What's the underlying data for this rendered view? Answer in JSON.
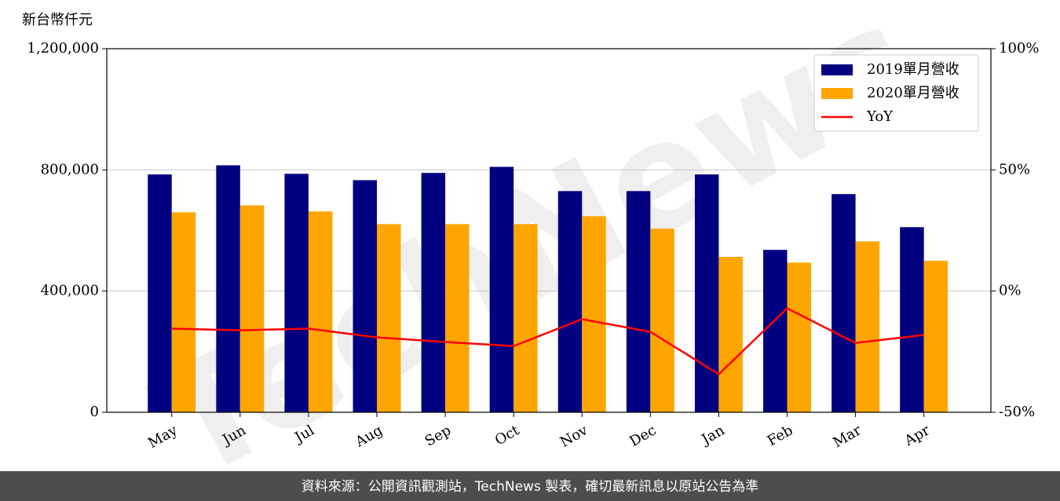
{
  "chart_data": {
    "type": "bar_line",
    "y_axis_label": "新台幣仟元",
    "categories": [
      "May",
      "Jun",
      "Jul",
      "Aug",
      "Sep",
      "Oct",
      "Nov",
      "Dec",
      "Jan",
      "Feb",
      "Mar",
      "Apr"
    ],
    "series": [
      {
        "name": "2019單月營收",
        "color": "#000080",
        "type": "bar",
        "values": [
          785000,
          815000,
          787000,
          766000,
          790000,
          810000,
          730000,
          730000,
          785000,
          536000,
          720000,
          611000
        ]
      },
      {
        "name": "2020單月營收",
        "color": "#ffa500",
        "type": "bar",
        "values": [
          660000,
          683000,
          663000,
          621000,
          621000,
          621000,
          647000,
          606000,
          513000,
          494000,
          564000,
          500000
        ]
      },
      {
        "name": "YoY",
        "color": "#ff0000",
        "type": "line",
        "axis": "y2",
        "values": [
          -15.5,
          -16.2,
          -15.5,
          -19.1,
          -21.0,
          -22.7,
          -11.6,
          -16.8,
          -34.3,
          -7.1,
          -21.4,
          -18.1
        ]
      }
    ],
    "ylim": [
      0,
      1200000
    ],
    "yticks": [
      {
        "value": 0,
        "label": "0"
      },
      {
        "value": 400000,
        "label": "400,000"
      },
      {
        "value": 800000,
        "label": "800,000"
      },
      {
        "value": 1200000,
        "label": "1,200,000"
      }
    ],
    "y2lim": [
      -50,
      100
    ],
    "y2ticks": [
      {
        "value": -50,
        "label": "-50%"
      },
      {
        "value": 0,
        "label": "0%"
      },
      {
        "value": 50,
        "label": "50%"
      },
      {
        "value": 100,
        "label": "100%"
      }
    ],
    "grid": true,
    "legend": "upper right",
    "watermark": "TechNews",
    "footer": "資料來源：公開資訊觀測站，TechNews 製表，確切最新訊息以原站公告為準"
  }
}
